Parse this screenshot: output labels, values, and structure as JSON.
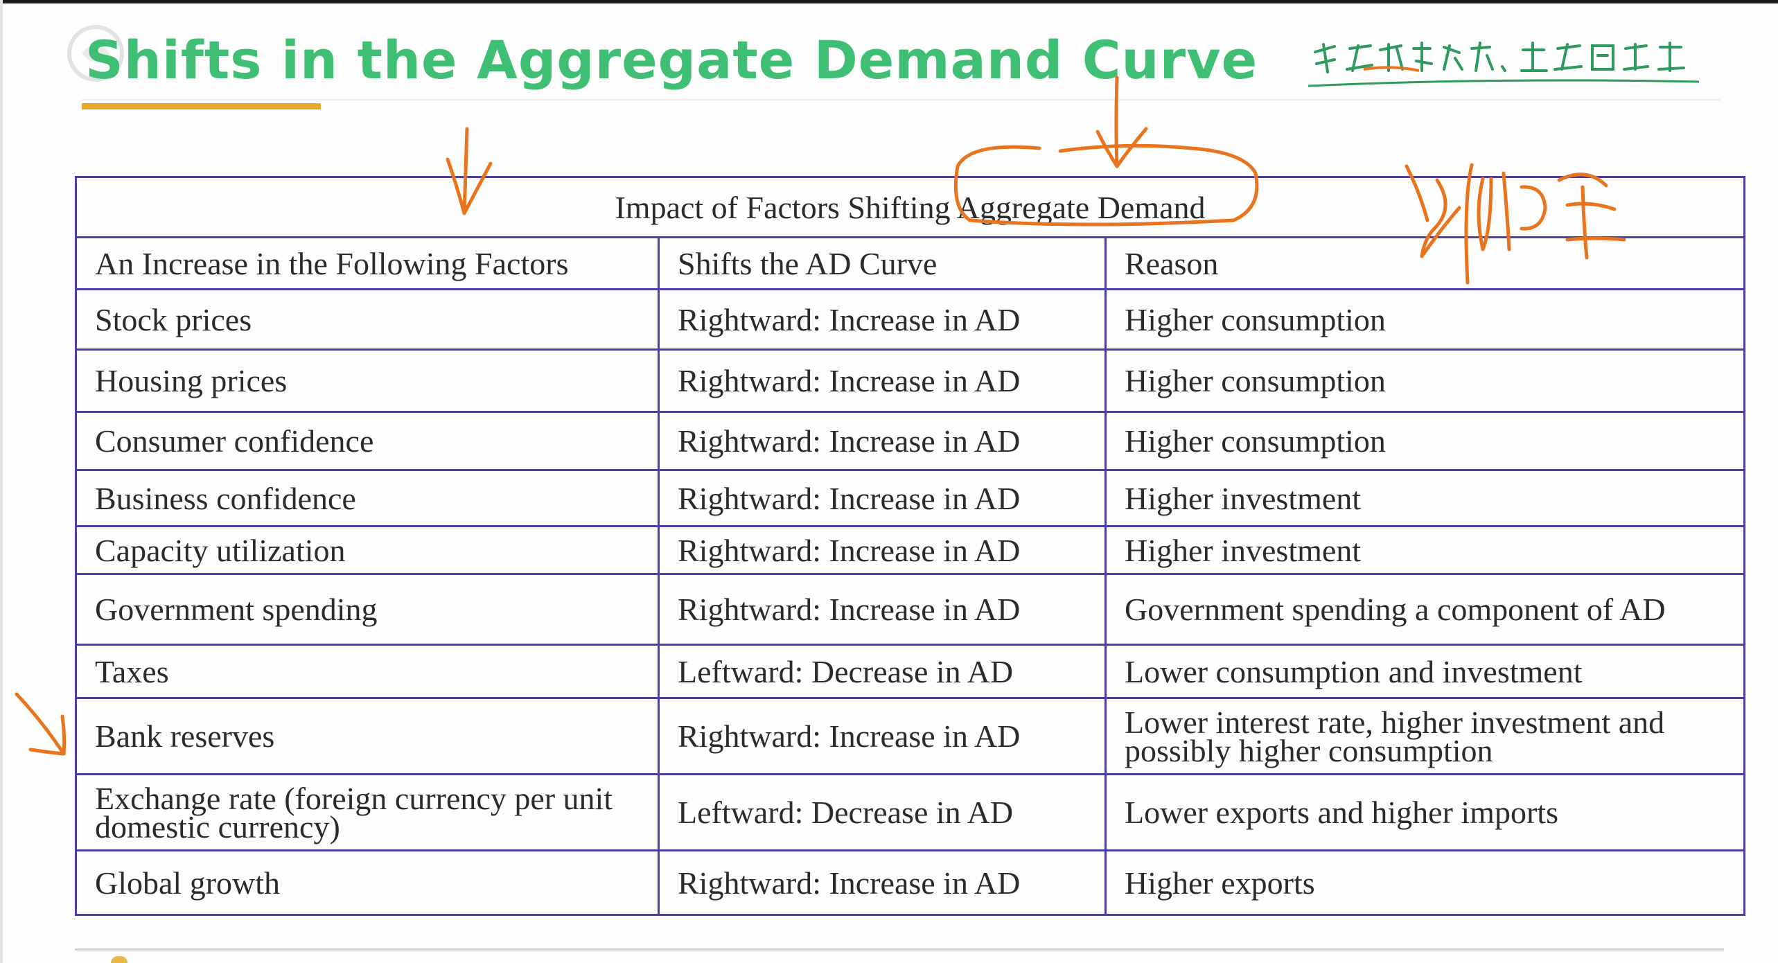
{
  "slide": {
    "title": "Shifts in the Aggregate Demand Curve",
    "handwriting_caption": "考金融证书，上金圈学堂"
  },
  "table": {
    "caption": "Impact of Factors Shifting Aggregate Demand",
    "headers": [
      "An Increase in the Following Factors",
      "Shifts the AD Curve",
      "Reason"
    ],
    "rows": [
      {
        "factor": "Stock prices",
        "shift": "Rightward: Increase in AD",
        "reason": "Higher consumption"
      },
      {
        "factor": "Housing prices",
        "shift": "Rightward: Increase in AD",
        "reason": "Higher consumption"
      },
      {
        "factor": "Consumer confidence",
        "shift": "Rightward: Increase in AD",
        "reason": "Higher consumption"
      },
      {
        "factor": "Business confidence",
        "shift": "Rightward: Increase in AD",
        "reason": "Higher investment"
      },
      {
        "factor": "Capacity utilization",
        "shift": "Rightward: Increase in AD",
        "reason": "Higher investment"
      },
      {
        "factor": "Government spending",
        "shift": "Rightward: Increase in AD",
        "reason": "Government spending a component of AD"
      },
      {
        "factor": "Taxes",
        "shift": "Leftward: Decrease in AD",
        "reason": "Lower consumption and investment"
      },
      {
        "factor": "Bank reserves",
        "shift": "Rightward: Increase in AD",
        "reason": "Lower interest rate, higher investment and possibly higher consumption"
      },
      {
        "factor": "Exchange rate (foreign currency per unit domestic currency)",
        "shift": "Leftward: Decrease in AD",
        "reason": "Lower exports and higher imports"
      },
      {
        "factor": "Global growth",
        "shift": "Rightward: Increase in AD",
        "reason": "Higher exports"
      }
    ]
  },
  "colors": {
    "title": "#3fbf73",
    "title_underline": "#e8a72a",
    "table_border": "#4a3fa8",
    "highlight_text": "#cc1f2c",
    "annotation": "#e8741e"
  },
  "annotations": {
    "handwriting_note": "润物细"
  }
}
